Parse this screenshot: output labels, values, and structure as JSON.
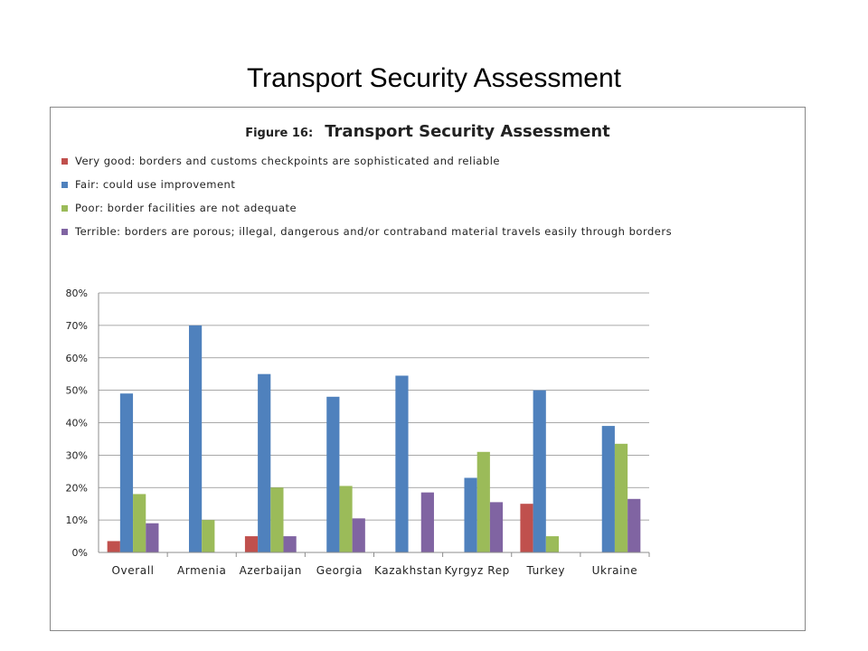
{
  "slide": {
    "title": "Transport Security Assessment"
  },
  "chart_data": {
    "type": "bar",
    "title_prefix": "Figure 16:",
    "title": "Transport Security Assessment",
    "categories": [
      "Overall",
      "Armenia",
      "Azerbaijan",
      "Georgia",
      "Kazakhstan",
      "Kyrgyz Rep",
      "Turkey",
      "Ukraine"
    ],
    "series": [
      {
        "name": "Very good: borders and customs checkpoints are sophisticated and reliable",
        "color": "#C0504D",
        "values": [
          3.5,
          0,
          5,
          0,
          0,
          0,
          15,
          0
        ]
      },
      {
        "name": "Fair: could use improvement",
        "color": "#4F81BD",
        "values": [
          49,
          70,
          55,
          48,
          54.5,
          23,
          50,
          39
        ]
      },
      {
        "name": "Poor: border facilities are not adequate",
        "color": "#9BBB59",
        "values": [
          18,
          10,
          20,
          20.5,
          0,
          31,
          5,
          33.5
        ]
      },
      {
        "name": "Terrible: borders are porous; illegal, dangerous and/or contraband material travels easily through borders",
        "color": "#8064A2",
        "values": [
          9,
          0,
          5,
          10.5,
          18.5,
          15.5,
          0,
          16.5
        ]
      }
    ],
    "y_ticks": [
      "0%",
      "10%",
      "20%",
      "30%",
      "40%",
      "50%",
      "60%",
      "70%",
      "80%"
    ],
    "ylim": [
      0,
      80
    ],
    "grid": true,
    "legend_position": "top-left"
  }
}
